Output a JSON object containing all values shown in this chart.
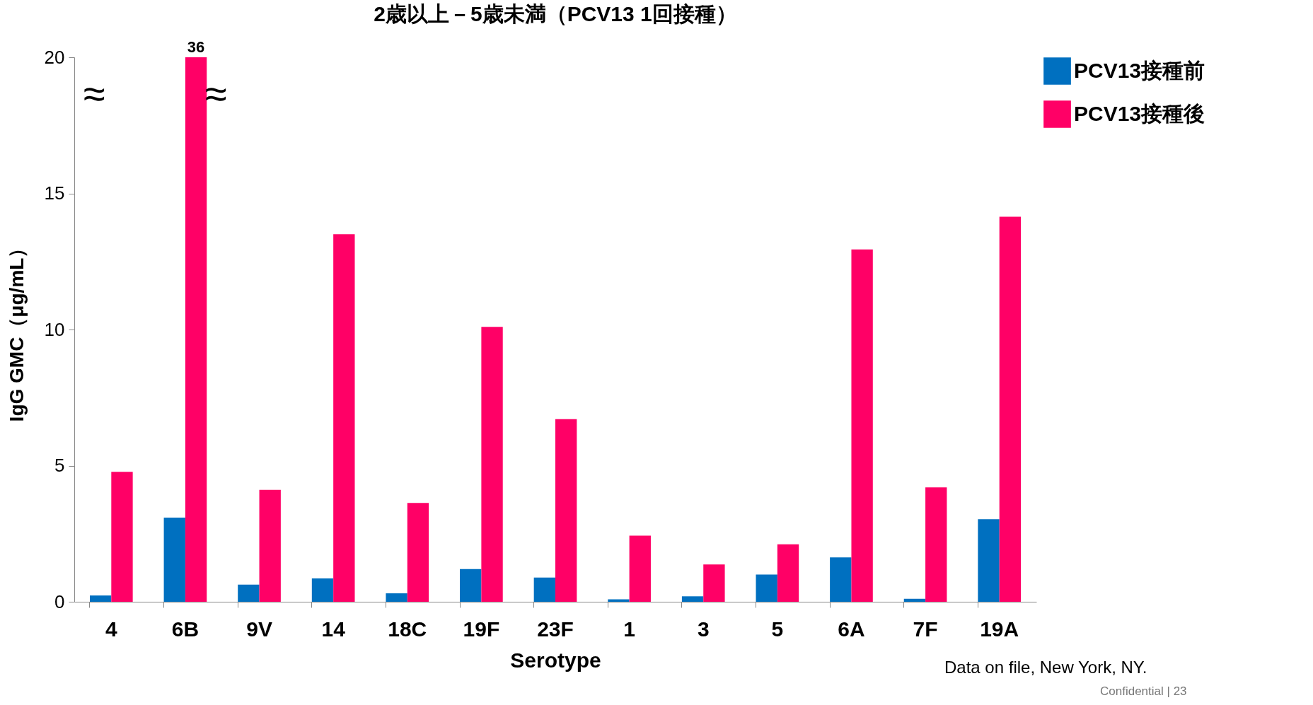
{
  "chart_data": {
    "type": "bar",
    "title": "2歳以上－5歳未満（PCV13 1回接種）",
    "xlabel": "Serotype",
    "ylabel": "IgG GMC（μg/mL）",
    "categories": [
      "4",
      "6B",
      "9V",
      "14",
      "18C",
      "19F",
      "23F",
      "1",
      "3",
      "5",
      "6A",
      "7F",
      "19A"
    ],
    "series": [
      {
        "name": "PCV13接種前",
        "color": "#0070c0",
        "values": [
          0.23,
          3.09,
          0.63,
          0.86,
          0.31,
          1.2,
          0.89,
          0.09,
          0.2,
          1.0,
          1.63,
          0.11,
          3.03
        ]
      },
      {
        "name": "PCV13接種後",
        "color": "#ff0066",
        "values": [
          4.77,
          20,
          4.11,
          13.5,
          3.63,
          10.1,
          6.71,
          2.43,
          1.37,
          2.11,
          12.94,
          4.2,
          14.14
        ]
      }
    ],
    "ylim": [
      0,
      20
    ],
    "yticks": [
      0,
      5,
      10,
      15,
      20
    ],
    "grid": false,
    "legend": "top right",
    "annotations": [
      {
        "text": "36",
        "x": "6B",
        "y": 20
      },
      "≈",
      "≈",
      "Data on file, New York, NY.",
      "Confidential | 23"
    ]
  }
}
